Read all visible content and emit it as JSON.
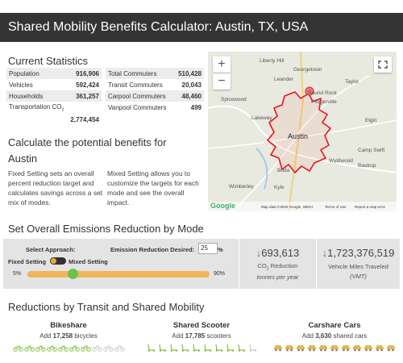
{
  "header": {
    "title": "Shared Mobility Benefits Calculator: Austin, TX, USA"
  },
  "statistics": {
    "title": "Current Statistics",
    "left": [
      {
        "label": "Population",
        "value": "916,906"
      },
      {
        "label": "Vehicles",
        "value": "592,424"
      },
      {
        "label": "Households",
        "value": "361,257"
      },
      {
        "label": "Transportation CO",
        "sub": "2",
        "value": "2,774,454"
      }
    ],
    "right": [
      {
        "label": "Total Commuters",
        "value": "510,428"
      },
      {
        "label": "Transit Commuters",
        "value": "20,043"
      },
      {
        "label": "Carpool Commuters",
        "value": "48,460"
      },
      {
        "label": "Vanpool Commuters",
        "value": "499"
      }
    ]
  },
  "map": {
    "zoom_in": "+",
    "zoom_out": "−",
    "labels": [
      "Liberty Hill",
      "Georgetown",
      "Leander",
      "Taylor",
      "Round Rock",
      "Spicewood",
      "Pflugerville",
      "Lakeway",
      "Elgin",
      "Austin",
      "Camp Swift",
      "Wyldwood",
      "Bastrop",
      "Buda",
      "Kyle",
      "Wimberley"
    ],
    "logo": "Google",
    "attribution": "Map data ©2020 Google, INEGI",
    "terms": "Terms of Use",
    "report": "Report a map error"
  },
  "calculate": {
    "title": "Calculate the potential benefits for",
    "city": "Austin",
    "fixed_text": "Fixed Setting sets an overall percent reduction target and calculates savings across a set mix of modes.",
    "mixed_text": "Mixed Setting allows you to customize the targets for each mode and see the overall impact."
  },
  "emissions": {
    "title": "Set Overall Emissions Reduction by Mode",
    "approach_label": "Select Approach:",
    "fixed": "Fixed Setting",
    "mixed": "Mixed Setting",
    "desired_label": "Emission Reduction Desired:",
    "desired_value": "25",
    "unit": "%",
    "slider_min": "5%",
    "slider_max": "90%",
    "co2": {
      "arrow": "↓",
      "value": "693,613",
      "label": "CO",
      "label_sub": "2",
      "label_after": " Reduction",
      "units": "tonnes per year"
    },
    "vmt": {
      "arrow": "↓",
      "value": "1,723,376,519",
      "label": "Vehicle Miles Traveled",
      "units": "(VMT)"
    }
  },
  "reductions": {
    "title": "Reductions by Transit and Shared Mobility",
    "modes": [
      {
        "name": "Bikeshare",
        "prefix": "Add",
        "count": "17,258",
        "suffix": "bicycles"
      },
      {
        "name": "Shared Scooter",
        "prefix": "Add",
        "count": "17,785",
        "suffix": "scooters"
      },
      {
        "name": "Carshare Cars",
        "prefix": "Add",
        "count": "3,630",
        "suffix": "shared cars"
      }
    ]
  }
}
